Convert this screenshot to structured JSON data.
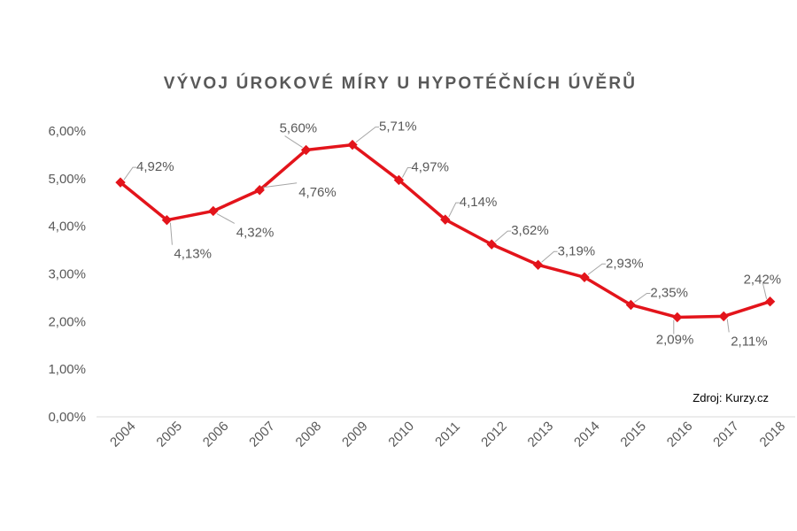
{
  "chart_data": {
    "type": "line",
    "title": "VÝVOJ ÚROKOVÉ MÍRY U HYPOTÉČNÍCH ÚVĚRŮ",
    "categories": [
      "2004",
      "2005",
      "2006",
      "2007",
      "2008",
      "2009",
      "2010",
      "2011",
      "2012",
      "2013",
      "2014",
      "2015",
      "2016",
      "2017",
      "2018"
    ],
    "values": [
      4.92,
      4.13,
      4.32,
      4.76,
      5.6,
      5.71,
      4.97,
      4.14,
      3.62,
      3.19,
      2.93,
      2.35,
      2.09,
      2.11,
      2.42
    ],
    "data_labels": [
      "4,92%",
      "4,13%",
      "4,32%",
      "4,76%",
      "5,60%",
      "5,71%",
      "4,97%",
      "4,14%",
      "3,62%",
      "3,19%",
      "2,93%",
      "2,35%",
      "2,09%",
      "2,11%",
      "2,42%"
    ],
    "y_ticks": [
      "0,00%",
      "1,00%",
      "2,00%",
      "3,00%",
      "4,00%",
      "5,00%",
      "6,00%"
    ],
    "ylim": [
      0,
      6
    ],
    "xlabel": "",
    "ylabel": "",
    "grid": false,
    "legend": "none",
    "source_note": "Zdroj: Kurzy.cz",
    "colors": {
      "line": "#e3141b",
      "text": "#595959",
      "axis": "#d9d9d9",
      "leader": "#a6a6a6"
    }
  }
}
